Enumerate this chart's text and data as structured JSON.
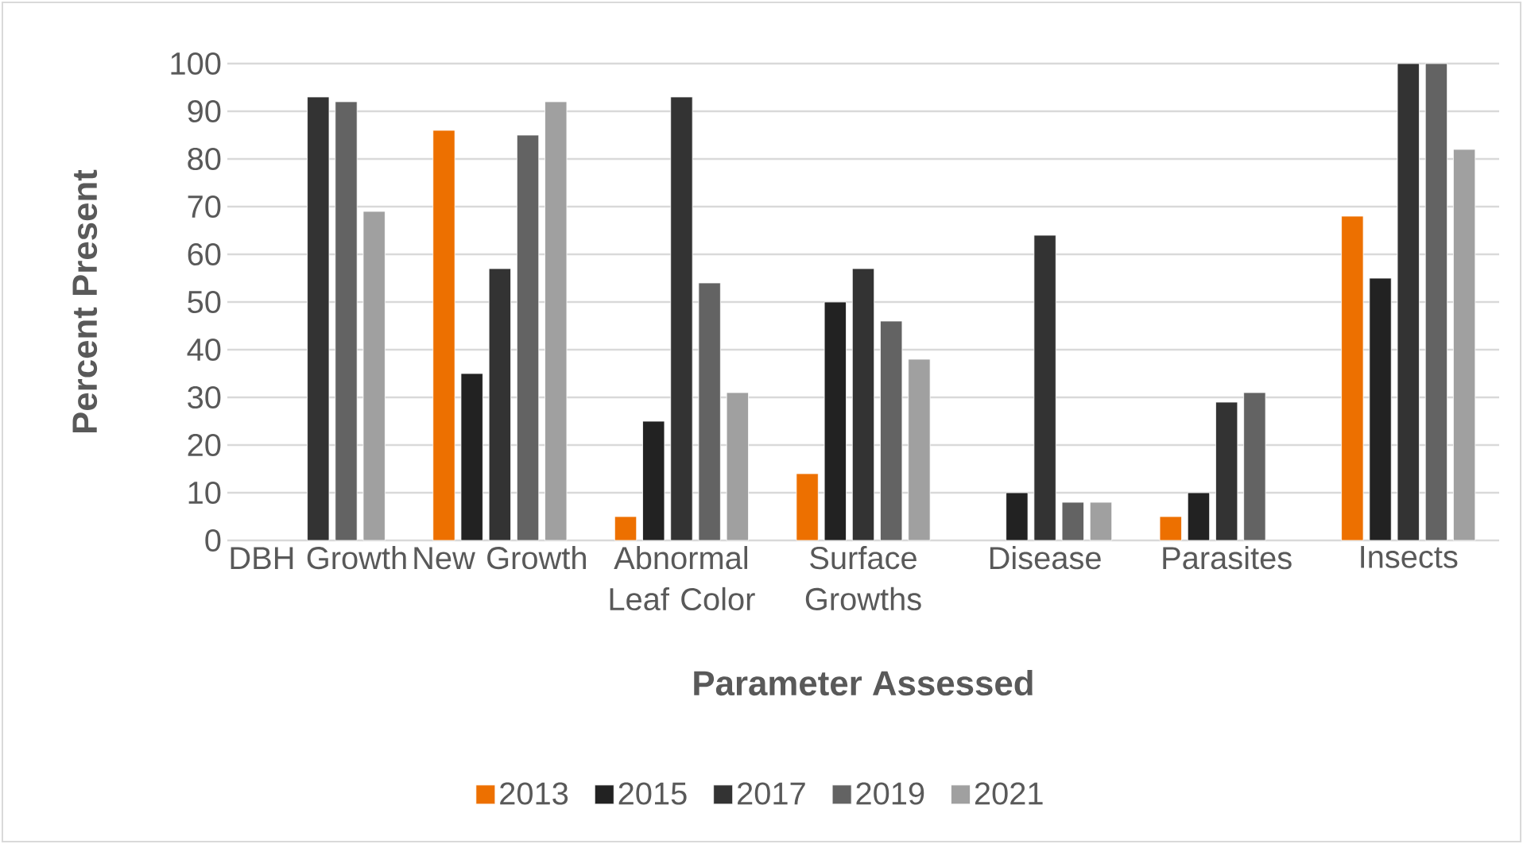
{
  "chart_data": {
    "type": "bar",
    "xlabel": "Parameter Assessed",
    "ylabel": "Percent Present",
    "categories": [
      "DBH Growth",
      "New Growth",
      "Abnormal Leaf Color",
      "Surface Growths",
      "Disease",
      "Parasites",
      "Insects"
    ],
    "series": [
      {
        "name": "2013",
        "color": "#ed7000",
        "values": [
          null,
          86,
          5,
          14,
          null,
          5,
          68
        ]
      },
      {
        "name": "2015",
        "color": "#222222",
        "values": [
          null,
          35,
          25,
          50,
          10,
          10,
          55
        ]
      },
      {
        "name": "2017",
        "color": "#333333",
        "values": [
          93,
          57,
          93,
          57,
          64,
          29,
          100
        ]
      },
      {
        "name": "2019",
        "color": "#636363",
        "values": [
          92,
          85,
          54,
          46,
          8,
          31,
          100
        ]
      },
      {
        "name": "2021",
        "color": "#a0a0a0",
        "values": [
          69,
          92,
          31,
          38,
          8,
          null,
          82
        ]
      }
    ],
    "ylim": [
      0,
      100
    ],
    "yticks": [
      0,
      10,
      20,
      30,
      40,
      50,
      60,
      70,
      80,
      90,
      100
    ],
    "grid": "y",
    "legend": "bottom"
  }
}
